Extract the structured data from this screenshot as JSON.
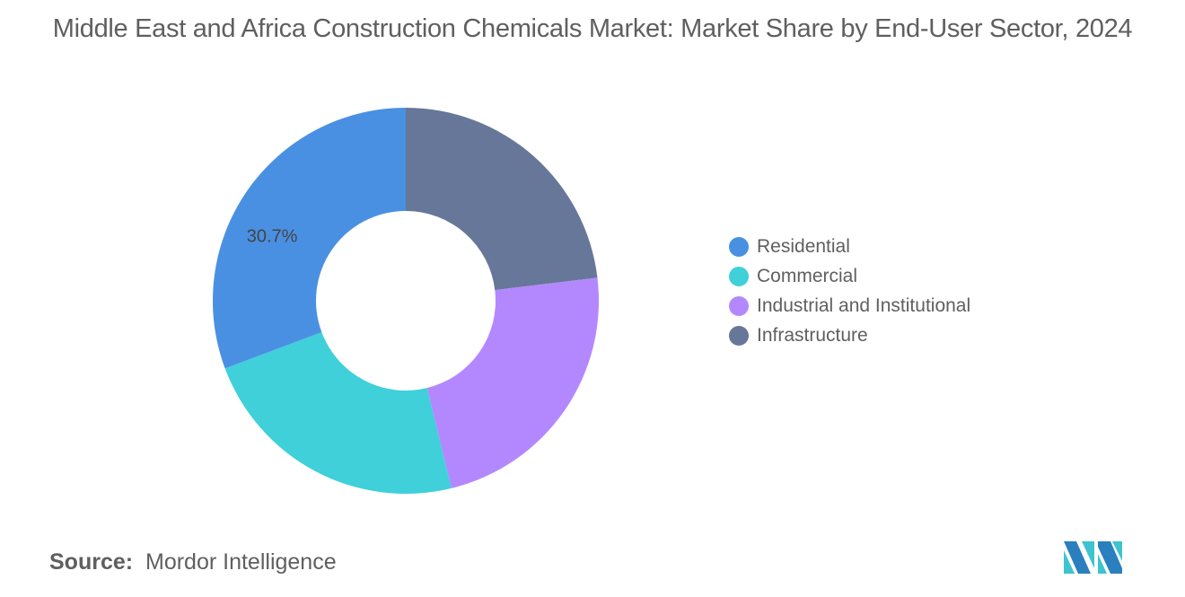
{
  "chart_data": {
    "type": "pie",
    "donut": true,
    "title": "Middle East and Africa Construction Chemicals Market: Market Share by End-User Sector, 2024",
    "categories": [
      "Residential",
      "Commercial",
      "Industrial and Institutional",
      "Infrastructure"
    ],
    "values": [
      30.7,
      23.1,
      23.1,
      23.1
    ],
    "colors": [
      "#4a90e2",
      "#3fd0da",
      "#b388ff",
      "#667799"
    ],
    "data_labels": [
      "30.7%",
      "",
      "",
      ""
    ],
    "legend_position": "right"
  },
  "source": {
    "label": "Source:",
    "value": "Mordor Intelligence"
  },
  "logo_text": "Mordor Intelligence"
}
